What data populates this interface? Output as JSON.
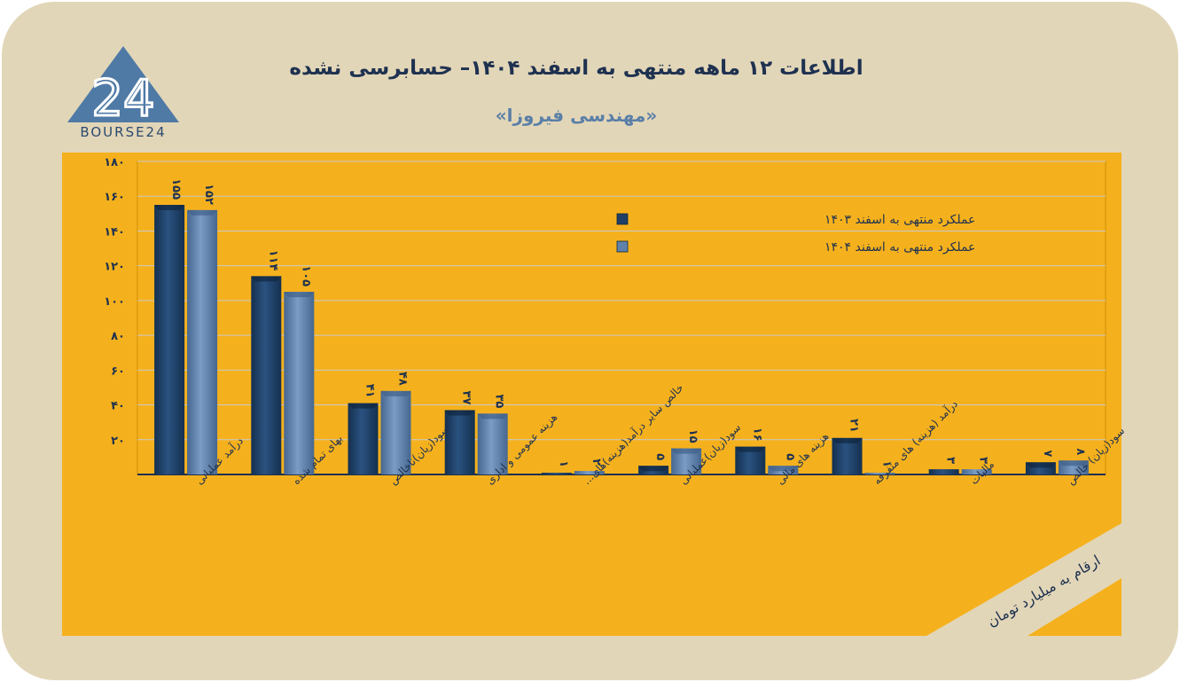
{
  "header": {
    "title": "اطلاعات ۱۲ ماهه منتهی به اسفند ۱۴۰۴– حسابرسی نشده",
    "subtitle": "«مهندسی فیروزا»",
    "logo_text": "BOURSE24",
    "logo_mark": "24"
  },
  "colors": {
    "background": "#e2d6b8",
    "plot_area": "#f5b11d",
    "series_1403": "#1f3f66",
    "series_1404": "#5f82ad",
    "title": "#1e3150"
  },
  "chart_data": {
    "type": "bar",
    "title": "اطلاعات ۱۲ ماهه منتهی به اسفند ۱۴۰۴– حسابرسی نشده",
    "categories": [
      "درآمد عملیاتی",
      "بهای تمام شده",
      "سود(زیان)ناخالص",
      "هزینه عمومی و اداری",
      "خالص سایر درآمد(هزینه)های...",
      "سود(زیان)عملیاتی",
      "هزینه های مالی",
      "درآمد (هزینه) های متفرقه",
      "مالیات",
      "سود(زیان) خالص"
    ],
    "series": [
      {
        "name": "عملکرد منتهی به اسفند ۱۴۰۳",
        "values": [
          155,
          114,
          41,
          37,
          1,
          5,
          16,
          21,
          3,
          7
        ],
        "labels": [
          "۱۵۵",
          "۱۱۴",
          "۴۱",
          "۳۷",
          "۱",
          "۵",
          "۱۶",
          "۲۱",
          "۳",
          "۷"
        ]
      },
      {
        "name": "عملکرد منتهی به اسفند ۱۴۰۴",
        "values": [
          152,
          105,
          48,
          35,
          2,
          15,
          5,
          1,
          3,
          8
        ],
        "labels": [
          "۱۵۲",
          "۱۰۵",
          "۴۸",
          "۳۵",
          "۲",
          "۱۵",
          "۵",
          "۱",
          "۳",
          "۸"
        ]
      }
    ],
    "ylim": [
      0,
      180
    ],
    "yticks": [
      20,
      40,
      60,
      80,
      100,
      120,
      140,
      160,
      180
    ],
    "ytick_labels": [
      "۲۰",
      "۴۰",
      "۶۰",
      "۸۰",
      "۱۰۰",
      "۱۲۰",
      "۱۴۰",
      "۱۶۰",
      "۱۸۰"
    ],
    "grid": true,
    "legend_position": "top-right",
    "unit_note": "ارقام به میلیارد تومان"
  }
}
